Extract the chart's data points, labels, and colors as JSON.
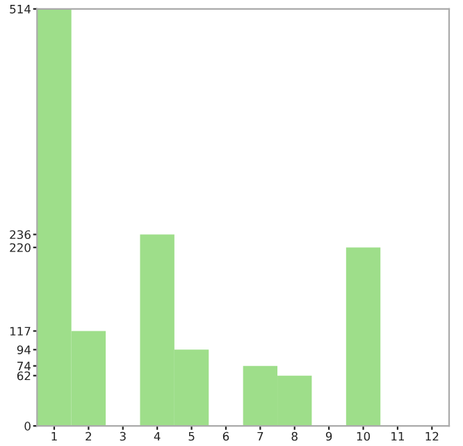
{
  "chart_data": {
    "type": "bar",
    "categories": [
      "1",
      "2",
      "3",
      "4",
      "5",
      "6",
      "7",
      "8",
      "9",
      "10",
      "11",
      "12"
    ],
    "values": [
      514,
      117,
      0,
      236,
      94,
      0,
      74,
      62,
      0,
      220,
      0,
      0
    ],
    "color": "#9ede8a",
    "ylim": [
      0,
      514
    ],
    "yticks": [
      0,
      62,
      74,
      94,
      117,
      220,
      236,
      514
    ],
    "grid": false
  }
}
